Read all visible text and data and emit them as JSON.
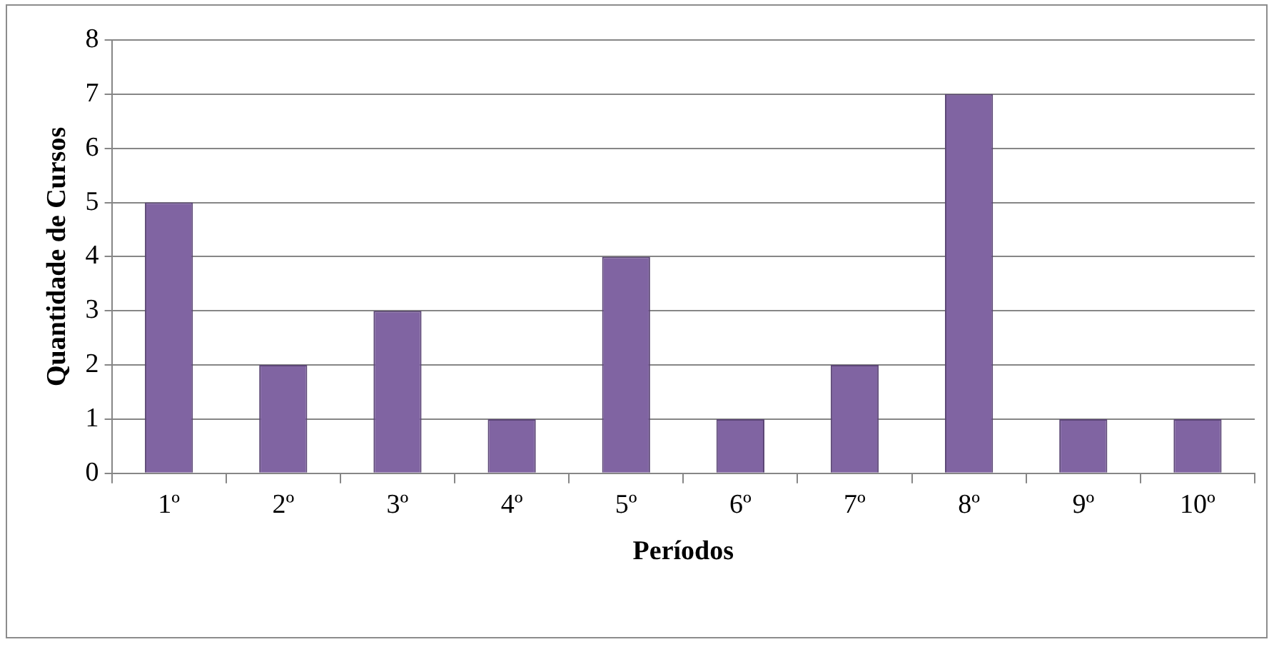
{
  "chart_data": {
    "type": "bar",
    "xlabel": "Períodos",
    "ylabel": "Quantidade de Cursos",
    "categories": [
      "1º",
      "2º",
      "3º",
      "4º",
      "5º",
      "6º",
      "7º",
      "8º",
      "9º",
      "10º"
    ],
    "values": [
      5,
      2,
      3,
      1,
      4,
      1,
      2,
      7,
      1,
      1
    ],
    "color": "#8064a2",
    "ylim": [
      0,
      8
    ],
    "yticks": [
      0,
      1,
      2,
      3,
      4,
      5,
      6,
      7,
      8
    ],
    "grid": "y",
    "legend": false
  }
}
